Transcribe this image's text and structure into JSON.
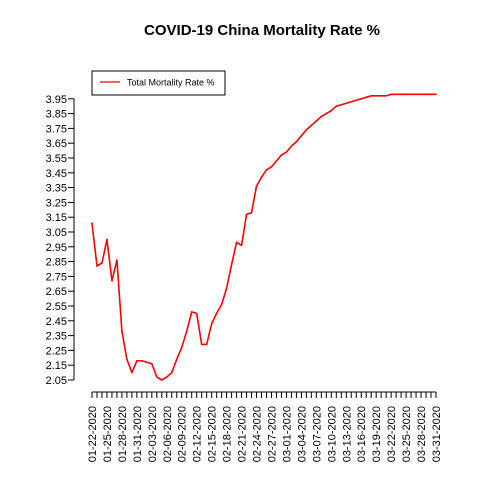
{
  "chart_data": {
    "type": "line",
    "title": "COVID-19 China Mortality Rate %",
    "xlabel": "",
    "ylabel": "",
    "ylim": [
      2.05,
      3.98
    ],
    "y_ticks": [
      "2.05",
      "2.15",
      "2.25",
      "2.35",
      "2.45",
      "2.55",
      "2.65",
      "2.75",
      "2.85",
      "2.95",
      "3.05",
      "3.15",
      "3.25",
      "3.35",
      "3.45",
      "3.55",
      "3.65",
      "3.75",
      "3.85",
      "3.95"
    ],
    "x_labels": [
      "01-22-2020",
      "01-25-2020",
      "01-28-2020",
      "01-31-2020",
      "02-03-2020",
      "02-06-2020",
      "02-09-2020",
      "02-12-2020",
      "02-15-2020",
      "02-18-2020",
      "02-21-2020",
      "02-24-2020",
      "02-27-2020",
      "03-01-2020",
      "03-04-2020",
      "03-07-2020",
      "03-10-2020",
      "03-13-2020",
      "03-16-2020",
      "03-19-2020",
      "03-22-2020",
      "03-25-2020",
      "03-28-2020",
      "03-31-2020"
    ],
    "legend": {
      "position": "top-left"
    },
    "grid": false,
    "series": [
      {
        "name": "Total Mortality Rate %",
        "color": "#ff0000",
        "x": [
          "01-22-2020",
          "01-23-2020",
          "01-24-2020",
          "01-25-2020",
          "01-26-2020",
          "01-27-2020",
          "01-28-2020",
          "01-29-2020",
          "01-30-2020",
          "01-31-2020",
          "02-01-2020",
          "02-02-2020",
          "02-03-2020",
          "02-04-2020",
          "02-05-2020",
          "02-06-2020",
          "02-07-2020",
          "02-08-2020",
          "02-09-2020",
          "02-10-2020",
          "02-11-2020",
          "02-12-2020",
          "02-13-2020",
          "02-14-2020",
          "02-15-2020",
          "02-16-2020",
          "02-17-2020",
          "02-18-2020",
          "02-19-2020",
          "02-20-2020",
          "02-21-2020",
          "02-22-2020",
          "02-23-2020",
          "02-24-2020",
          "02-25-2020",
          "02-26-2020",
          "02-27-2020",
          "02-28-2020",
          "02-29-2020",
          "03-01-2020",
          "03-02-2020",
          "03-03-2020",
          "03-04-2020",
          "03-05-2020",
          "03-06-2020",
          "03-07-2020",
          "03-08-2020",
          "03-09-2020",
          "03-10-2020",
          "03-11-2020",
          "03-12-2020",
          "03-13-2020",
          "03-14-2020",
          "03-15-2020",
          "03-16-2020",
          "03-17-2020",
          "03-18-2020",
          "03-19-2020",
          "03-20-2020",
          "03-21-2020",
          "03-22-2020",
          "03-23-2020",
          "03-24-2020",
          "03-25-2020",
          "03-26-2020",
          "03-27-2020",
          "03-28-2020",
          "03-29-2020",
          "03-30-2020",
          "03-31-2020"
        ],
        "values": [
          3.11,
          2.82,
          2.84,
          3.0,
          2.72,
          2.86,
          2.38,
          2.19,
          2.1,
          2.18,
          2.18,
          2.17,
          2.16,
          2.07,
          2.05,
          2.07,
          2.1,
          2.19,
          2.27,
          2.38,
          2.51,
          2.5,
          2.29,
          2.29,
          2.43,
          2.5,
          2.56,
          2.67,
          2.83,
          2.98,
          2.96,
          3.17,
          3.18,
          3.36,
          3.42,
          3.47,
          3.49,
          3.53,
          3.57,
          3.59,
          3.63,
          3.66,
          3.7,
          3.74,
          3.77,
          3.8,
          3.83,
          3.85,
          3.87,
          3.9,
          3.91,
          3.92,
          3.93,
          3.94,
          3.95,
          3.96,
          3.97,
          3.97,
          3.97,
          3.97,
          3.98,
          3.98,
          3.98,
          3.98,
          3.98,
          3.98,
          3.98,
          3.98,
          3.98,
          3.98
        ]
      }
    ]
  }
}
